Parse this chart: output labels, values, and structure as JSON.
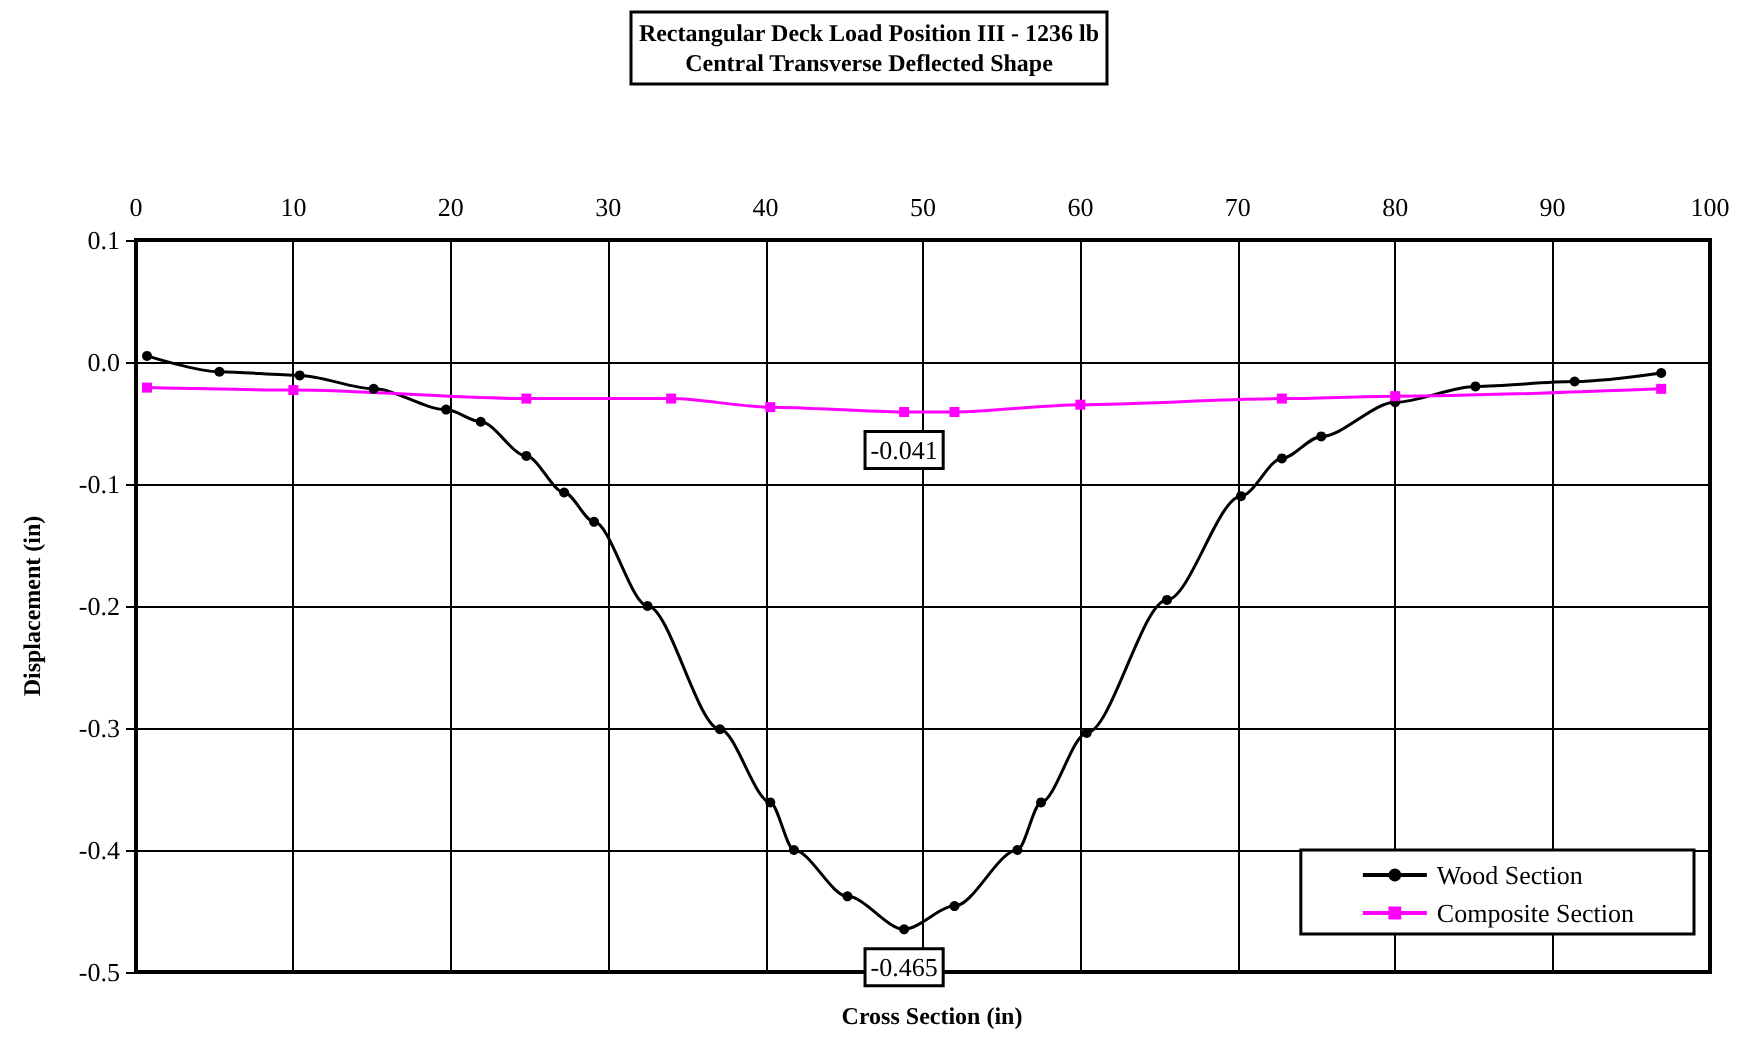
{
  "chart_data": {
    "type": "line",
    "title": "Rectangular Deck Load Position III - 1236 lb",
    "subtitle": "Central Transverse Deflected Shape",
    "xlabel": "Cross Section (in)",
    "ylabel": "Displacement (in)",
    "xlim": [
      0,
      100
    ],
    "xticks": [
      0,
      10,
      20,
      30,
      40,
      50,
      60,
      70,
      80,
      90,
      100
    ],
    "ylim": [
      -0.5,
      0.1
    ],
    "yticks": [
      0.1,
      {
        "value": 0,
        "label": "0.0"
      },
      -0.1,
      -0.2,
      -0.3,
      -0.4,
      -0.5
    ],
    "grid": true,
    "legend": "bottom right",
    "series": [
      {
        "name": "Wood Section",
        "color": "#000000",
        "marker": "circle",
        "x": [
          0.7,
          5.3,
          10.4,
          15.1,
          19.7,
          21.9,
          24.8,
          27.2,
          29.1,
          32.5,
          37.1,
          40.3,
          41.8,
          45.2,
          48.8,
          52.0,
          56.0,
          57.5,
          60.4,
          65.5,
          70.2,
          72.8,
          75.3,
          80.0,
          85.1,
          91.4,
          96.9
        ],
        "values": [
          0.005,
          -0.008,
          -0.011,
          -0.022,
          -0.039,
          -0.049,
          -0.077,
          -0.107,
          -0.131,
          -0.2,
          -0.301,
          -0.361,
          -0.4,
          -0.438,
          -0.465,
          -0.446,
          -0.4,
          -0.361,
          -0.304,
          -0.195,
          -0.11,
          -0.079,
          -0.061,
          -0.033,
          -0.02,
          -0.016,
          -0.009
        ],
        "value_labels": [
          null,
          null,
          null,
          null,
          null,
          null,
          null,
          null,
          null,
          null,
          null,
          null,
          null,
          null,
          "-0.465",
          null,
          null,
          null,
          null,
          null,
          null,
          null,
          null,
          null,
          null,
          null,
          null
        ]
      },
      {
        "name": "Composite Section",
        "color": "#ff00ff",
        "marker": "square",
        "x": [
          0.7,
          10,
          24.8,
          34,
          40.3,
          48.8,
          52,
          60,
          72.8,
          80,
          96.9
        ],
        "values": [
          -0.021,
          -0.023,
          -0.03,
          -0.03,
          -0.037,
          -0.041,
          -0.041,
          -0.035,
          -0.03,
          -0.028,
          -0.022
        ],
        "value_labels": [
          null,
          null,
          null,
          null,
          null,
          "-0.041",
          null,
          null,
          null,
          null,
          null
        ]
      }
    ]
  }
}
